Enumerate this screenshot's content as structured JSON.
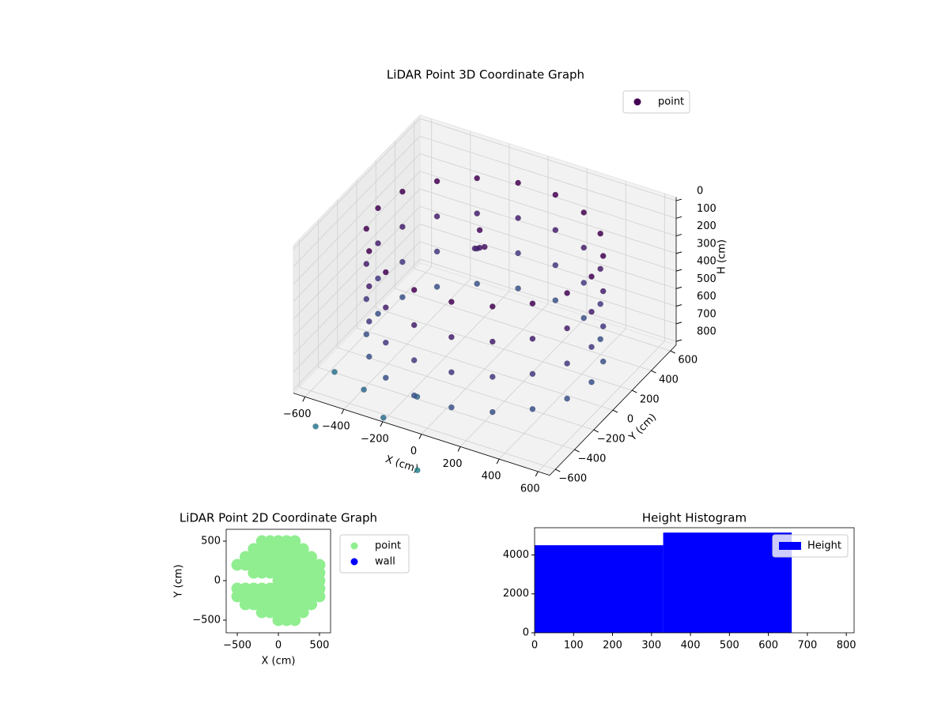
{
  "chart_data": [
    {
      "type": "scatter3d",
      "title": "LiDAR Point 3D Coordinate Graph",
      "xlabel": "X (cm)",
      "ylabel": "Y (cm)",
      "zlabel": "H (cm)",
      "xlim": [
        -660,
        660
      ],
      "ylim": [
        -660,
        660
      ],
      "zlim": [
        -20,
        820
      ],
      "z_inverted": true,
      "xticks": [
        {
          "value": -600,
          "label": "−600"
        },
        {
          "value": -400,
          "label": "−400"
        },
        {
          "value": -200,
          "label": "−200"
        },
        0,
        200,
        400,
        600
      ],
      "yticks": [
        {
          "value": -600,
          "label": "−600"
        },
        {
          "value": -400,
          "label": "−400"
        },
        {
          "value": -200,
          "label": "−200"
        },
        0,
        200,
        400,
        600
      ],
      "zticks": [
        0,
        100,
        200,
        300,
        400,
        500,
        600,
        700,
        800
      ],
      "grid": true,
      "legend": "upper right",
      "colormap": [
        "#440154",
        "#482878",
        "#3e4989",
        "#31688e",
        "#26828e"
      ],
      "series": [
        {
          "name": "point",
          "color": "#440154",
          "x": [
            550,
            517,
            421,
            275,
            96,
            -96,
            -275,
            -421,
            -517,
            -550,
            -517,
            -421,
            -275,
            -96,
            96,
            275,
            421,
            517,
            550,
            517,
            421,
            275,
            96,
            -96,
            -275,
            -421,
            -517,
            -550,
            -517,
            -421,
            -275,
            -96,
            96,
            275,
            421,
            517,
            550,
            517,
            421,
            275,
            96,
            -96,
            -275,
            -421,
            -517,
            -550,
            -517,
            -421,
            -275,
            -96,
            96,
            275,
            421,
            517,
            550,
            517,
            421,
            275,
            96,
            -96,
            -275,
            -421,
            -517,
            -550,
            -517,
            -421,
            -275,
            -96,
            96,
            275,
            421,
            517,
            -700,
            -600,
            -450,
            -300,
            -200,
            -100,
            -100,
            -100,
            -50,
            -150
          ],
          "y": [
            0,
            188,
            354,
            476,
            542,
            542,
            476,
            354,
            188,
            0,
            -188,
            -354,
            -476,
            -542,
            -542,
            -476,
            -354,
            -188,
            0,
            188,
            354,
            476,
            542,
            542,
            476,
            354,
            188,
            0,
            -188,
            -354,
            -476,
            -542,
            -542,
            -476,
            -354,
            -188,
            0,
            188,
            354,
            476,
            542,
            542,
            476,
            354,
            188,
            0,
            -188,
            -354,
            -476,
            -542,
            -542,
            -476,
            -354,
            -188,
            0,
            188,
            354,
            476,
            542,
            542,
            476,
            354,
            188,
            0,
            -188,
            -354,
            -476,
            -542,
            -542,
            -476,
            -354,
            -188,
            -150,
            -550,
            -350,
            -450,
            -300,
            -500,
            150,
            150,
            100,
            200
          ],
          "z": [
            100,
            100,
            100,
            100,
            100,
            100,
            100,
            100,
            100,
            100,
            100,
            100,
            100,
            100,
            100,
            100,
            100,
            100,
            300,
            300,
            300,
            300,
            300,
            300,
            300,
            300,
            300,
            300,
            300,
            300,
            300,
            300,
            300,
            300,
            300,
            300,
            500,
            500,
            500,
            500,
            500,
            500,
            500,
            500,
            500,
            500,
            500,
            500,
            500,
            500,
            500,
            500,
            500,
            500,
            700,
            700,
            700,
            700,
            700,
            700,
            700,
            700,
            700,
            700,
            700,
            700,
            700,
            700,
            700,
            700,
            700,
            700,
            1000,
            1050,
            900,
            950,
            880,
            1150,
            150,
            250,
            200,
            300
          ]
        }
      ]
    },
    {
      "type": "scatter",
      "title": "LiDAR Point 2D Coordinate Graph",
      "xlabel": "X (cm)",
      "ylabel": "Y (cm)",
      "xlim": [
        -635,
        635
      ],
      "ylim": [
        -660,
        650
      ],
      "xticks": [
        {
          "value": -500,
          "label": "−500"
        },
        0,
        500
      ],
      "yticks": [
        {
          "value": -500,
          "label": "−500"
        },
        0,
        500
      ],
      "legend": "outside right",
      "series": [
        {
          "name": "point",
          "color": "#90ee90",
          "x": [
            -200,
            -100,
            0,
            100,
            200,
            -300,
            -200,
            -100,
            0,
            100,
            200,
            300,
            -400,
            -300,
            -200,
            -100,
            0,
            100,
            200,
            300,
            400,
            -500,
            -400,
            -300,
            -200,
            -100,
            0,
            100,
            200,
            300,
            400,
            500,
            -300,
            -200,
            -100,
            0,
            100,
            200,
            300,
            400,
            500,
            0,
            100,
            200,
            300,
            400,
            500,
            -500,
            -400,
            -300,
            -200,
            -100,
            0,
            100,
            200,
            300,
            400,
            500,
            -500,
            -400,
            -300,
            -200,
            -100,
            0,
            100,
            200,
            300,
            400,
            500,
            -400,
            -300,
            -200,
            -100,
            0,
            100,
            200,
            300,
            400,
            -200,
            -100,
            0,
            100,
            200,
            300,
            0,
            100,
            200
          ],
          "y": [
            500,
            500,
            500,
            500,
            500,
            400,
            400,
            400,
            400,
            400,
            400,
            400,
            300,
            300,
            300,
            300,
            300,
            300,
            300,
            300,
            300,
            200,
            200,
            200,
            200,
            200,
            200,
            200,
            200,
            200,
            200,
            200,
            100,
            100,
            100,
            100,
            100,
            100,
            100,
            100,
            100,
            0,
            0,
            0,
            0,
            0,
            0,
            -100,
            -100,
            -100,
            -100,
            -100,
            -100,
            -100,
            -100,
            -100,
            -100,
            -100,
            -200,
            -200,
            -200,
            -200,
            -200,
            -200,
            -200,
            -200,
            -200,
            -200,
            -200,
            -300,
            -300,
            -300,
            -300,
            -300,
            -300,
            -300,
            -300,
            -300,
            -400,
            -400,
            -400,
            -400,
            -400,
            -400,
            -500,
            -500,
            -500
          ]
        },
        {
          "name": "wall",
          "color": "#0000ff",
          "x": [],
          "y": []
        }
      ]
    },
    {
      "type": "histogram",
      "title": "Height Histogram",
      "xlim": [
        0,
        820
      ],
      "ylim": [
        0,
        5400
      ],
      "xticks": [
        0,
        100,
        200,
        300,
        400,
        500,
        600,
        700,
        800
      ],
      "yticks": [
        0,
        2000,
        4000
      ],
      "legend": "upper right",
      "bins": [
        0,
        330,
        660
      ],
      "series": [
        {
          "name": "Height",
          "color": "#0000ff",
          "values": [
            4500,
            5150
          ]
        }
      ]
    }
  ]
}
